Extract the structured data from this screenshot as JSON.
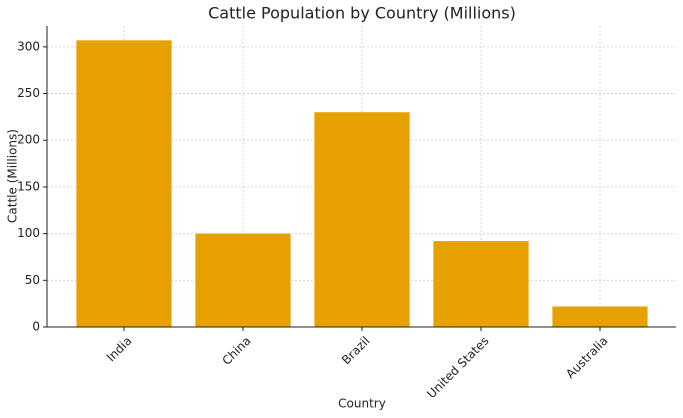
{
  "chart_data": {
    "type": "bar",
    "title": "Cattle Population by Country (Millions)",
    "x_label": "Country",
    "y_label": "Cattle (Millions)",
    "categories": [
      "India",
      "China",
      "Brazil",
      "United States",
      "Australia"
    ],
    "values": [
      307,
      100,
      230,
      92,
      22
    ],
    "color": "#e6a000",
    "ylim": [
      0,
      322.35
    ],
    "yticks": [
      0,
      50,
      100,
      150,
      200,
      250,
      300
    ],
    "grid": true
  }
}
